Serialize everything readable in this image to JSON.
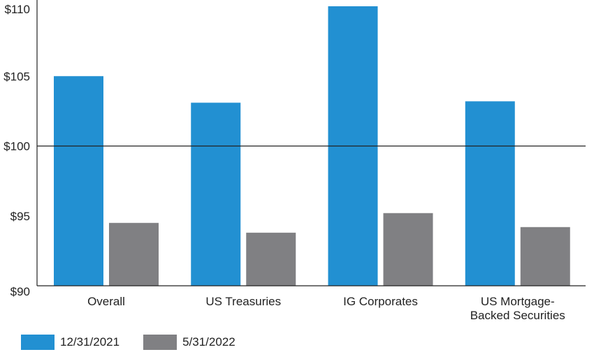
{
  "chart_data": {
    "type": "bar",
    "categories": [
      [
        "Overall"
      ],
      [
        "US Treasuries"
      ],
      [
        "IG Corporates"
      ],
      [
        "US Mortgage-",
        "Backed Securities"
      ]
    ],
    "series": [
      {
        "name": "12/31/2021",
        "color": "#2290d2",
        "values": [
          105.0,
          103.1,
          110.0,
          103.2
        ]
      },
      {
        "name": "5/31/2022",
        "color": "#808083",
        "values": [
          94.5,
          93.8,
          95.2,
          94.2
        ]
      }
    ],
    "ylim": [
      90,
      110
    ],
    "yticks": [
      90,
      95,
      100,
      105,
      110
    ],
    "ytick_labels": [
      "$90",
      "$95",
      "$100",
      "$105",
      "$110"
    ],
    "reference_line": 100,
    "title": "",
    "xlabel": "",
    "ylabel": "",
    "legend_position": "bottom-left"
  }
}
